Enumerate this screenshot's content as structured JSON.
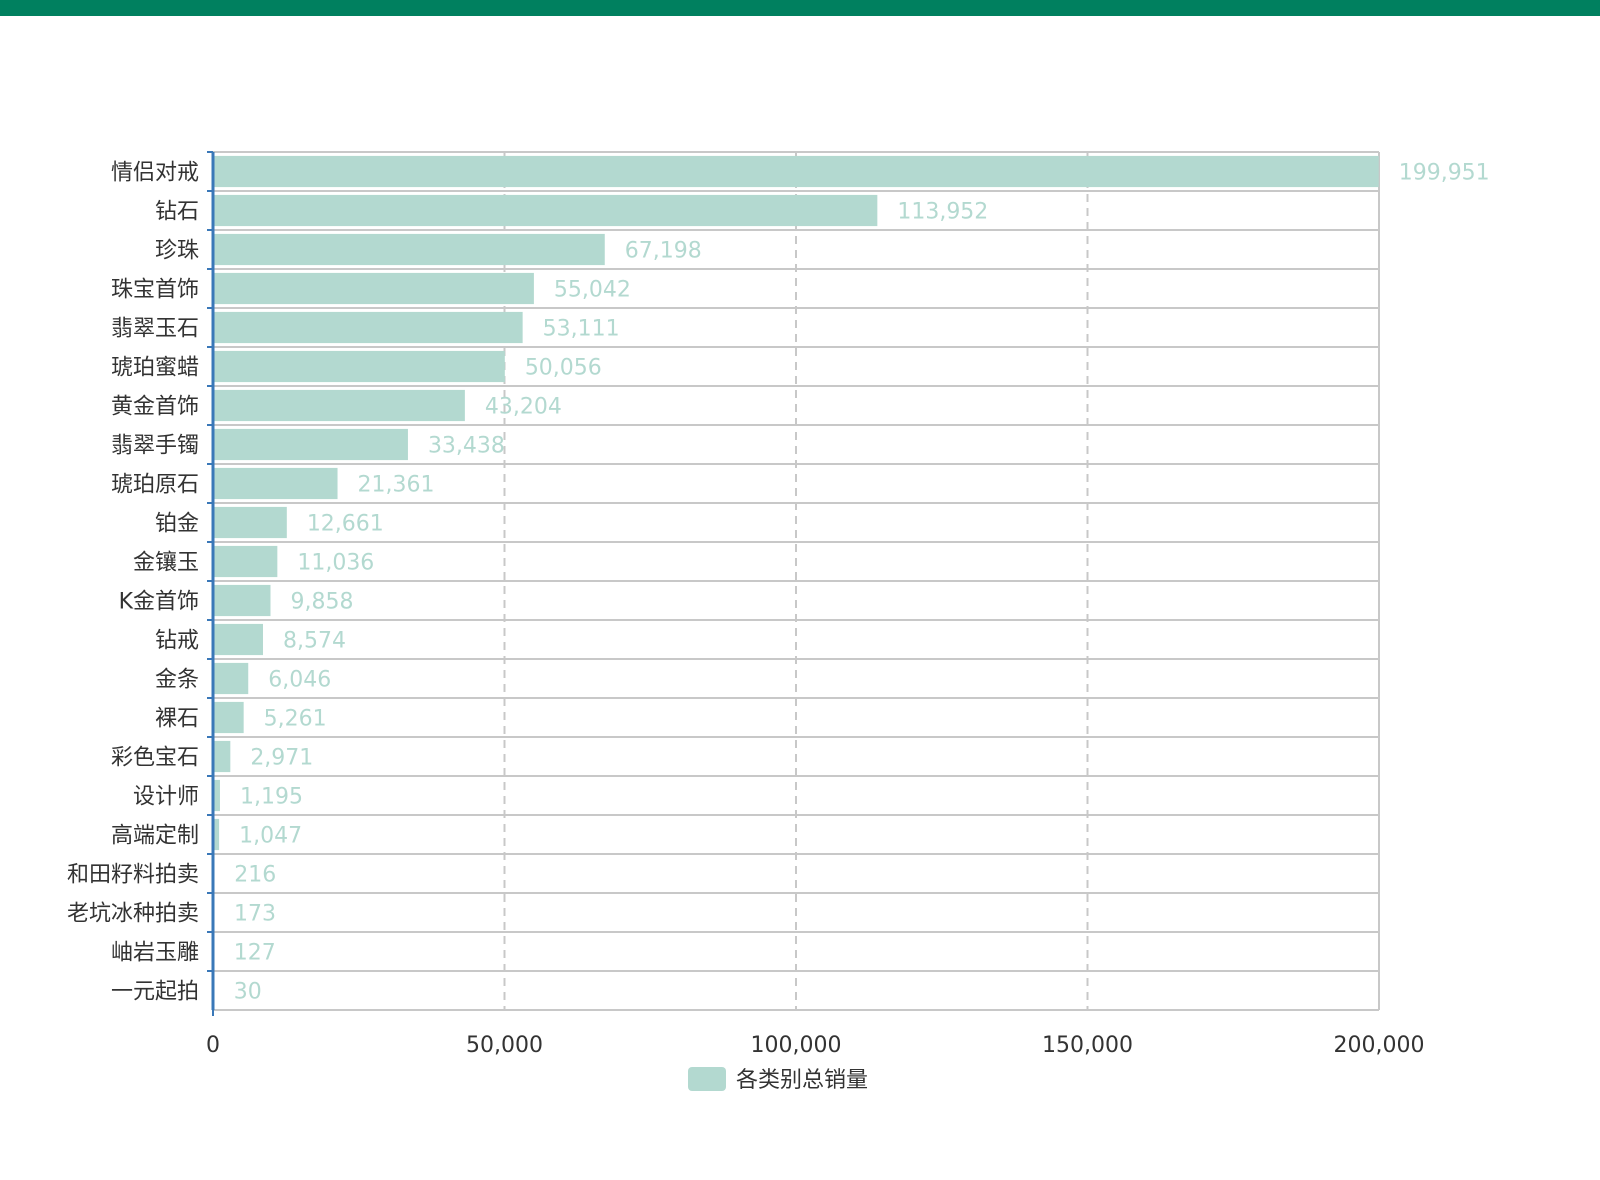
{
  "theme": {
    "top_bar_color": "#00805f",
    "bar_color": "#b3d9d0",
    "label_color": "#b3d9d0",
    "axis_color": "#3a78b8",
    "grid_color": "#c8c8c8"
  },
  "chart_data": {
    "type": "bar",
    "orientation": "horizontal",
    "categories": [
      "情侣对戒",
      "钻石",
      "珍珠",
      "珠宝首饰",
      "翡翠玉石",
      "琥珀蜜蜡",
      "黄金首饰",
      "翡翠手镯",
      "琥珀原石",
      "铂金",
      "金镶玉",
      "K金首饰",
      "钻戒",
      "金条",
      "裸石",
      "彩色宝石",
      "设计师",
      "高端定制",
      "和田籽料拍卖",
      "老坑冰种拍卖",
      "岫岩玉雕",
      "一元起拍"
    ],
    "series": [
      {
        "name": "各类别总销量",
        "values": [
          199951,
          113952,
          67198,
          55042,
          53111,
          50056,
          43204,
          33438,
          21361,
          12661,
          11036,
          9858,
          8574,
          6046,
          5261,
          2971,
          1195,
          1047,
          216,
          173,
          127,
          30
        ]
      }
    ],
    "value_labels": [
      "199,951",
      "113,952",
      "67,198",
      "55,042",
      "53,111",
      "50,056",
      "43,204",
      "33,438",
      "21,361",
      "12,661",
      "11,036",
      "9,858",
      "8,574",
      "6,046",
      "5,261",
      "2,971",
      "1,195",
      "1,047",
      "216",
      "173",
      "127",
      "30"
    ],
    "xlim": [
      0,
      200000
    ],
    "xticks": [
      0,
      50000,
      100000,
      150000,
      200000
    ],
    "xtick_labels": [
      "0",
      "50,000",
      "100,000",
      "150,000",
      "200,000"
    ],
    "grid": true,
    "legend_position": "bottom"
  }
}
